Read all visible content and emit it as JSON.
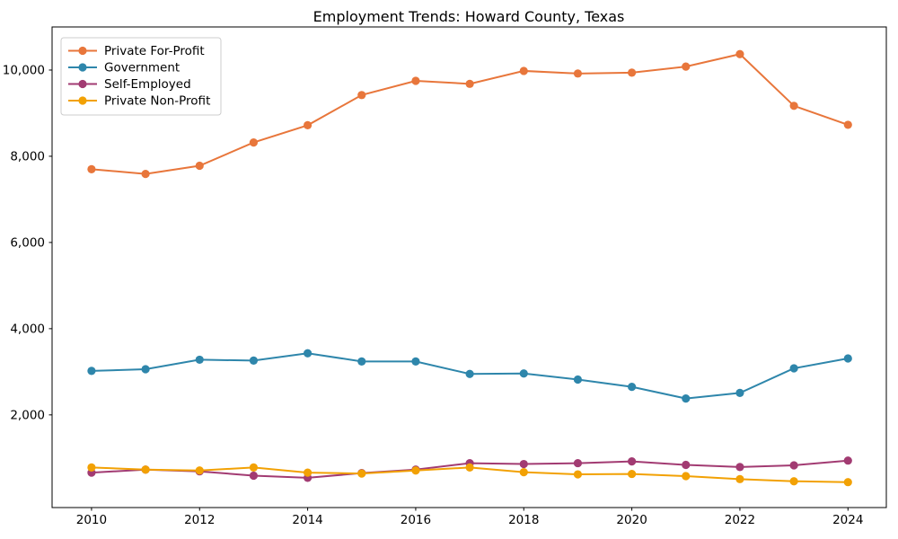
{
  "chart_data": {
    "type": "line",
    "title": "Employment Trends: Howard County, Texas",
    "x": [
      2010,
      2011,
      2012,
      2013,
      2014,
      2015,
      2016,
      2017,
      2018,
      2019,
      2020,
      2021,
      2022,
      2023,
      2024
    ],
    "series": [
      {
        "name": "Private For-Profit",
        "color": "#E8763B",
        "values": [
          7700,
          7590,
          7780,
          8320,
          8720,
          9420,
          9750,
          9680,
          9980,
          9920,
          9940,
          10080,
          10370,
          9170,
          8730
        ]
      },
      {
        "name": "Government",
        "color": "#2E86AB",
        "values": [
          3020,
          3060,
          3280,
          3260,
          3430,
          3240,
          3240,
          2950,
          2960,
          2820,
          2650,
          2380,
          2510,
          3080,
          3310
        ]
      },
      {
        "name": "Self-Employed",
        "color": "#A23B72",
        "values": [
          660,
          730,
          690,
          590,
          540,
          650,
          730,
          880,
          860,
          880,
          920,
          840,
          790,
          830,
          940
        ]
      },
      {
        "name": "Private Non-Profit",
        "color": "#F2A104",
        "values": [
          780,
          730,
          710,
          780,
          660,
          640,
          710,
          780,
          670,
          620,
          630,
          580,
          510,
          460,
          440
        ]
      }
    ],
    "xtick_labels": [
      "2010",
      "2012",
      "2014",
      "2016",
      "2018",
      "2020",
      "2022",
      "2024"
    ],
    "xticks": [
      2010,
      2012,
      2014,
      2016,
      2018,
      2020,
      2022,
      2024
    ],
    "ytick_labels": [
      "2,000",
      "4,000",
      "6,000",
      "8,000",
      "10,000"
    ],
    "yticks": [
      2000,
      4000,
      6000,
      8000,
      10000
    ],
    "xlim": [
      2009.27,
      2024.71
    ],
    "ylim": [
      -150,
      11000
    ],
    "grid": false,
    "legend_position": "upper left",
    "background_color": "#ffffff",
    "spine_color": "#000000"
  }
}
